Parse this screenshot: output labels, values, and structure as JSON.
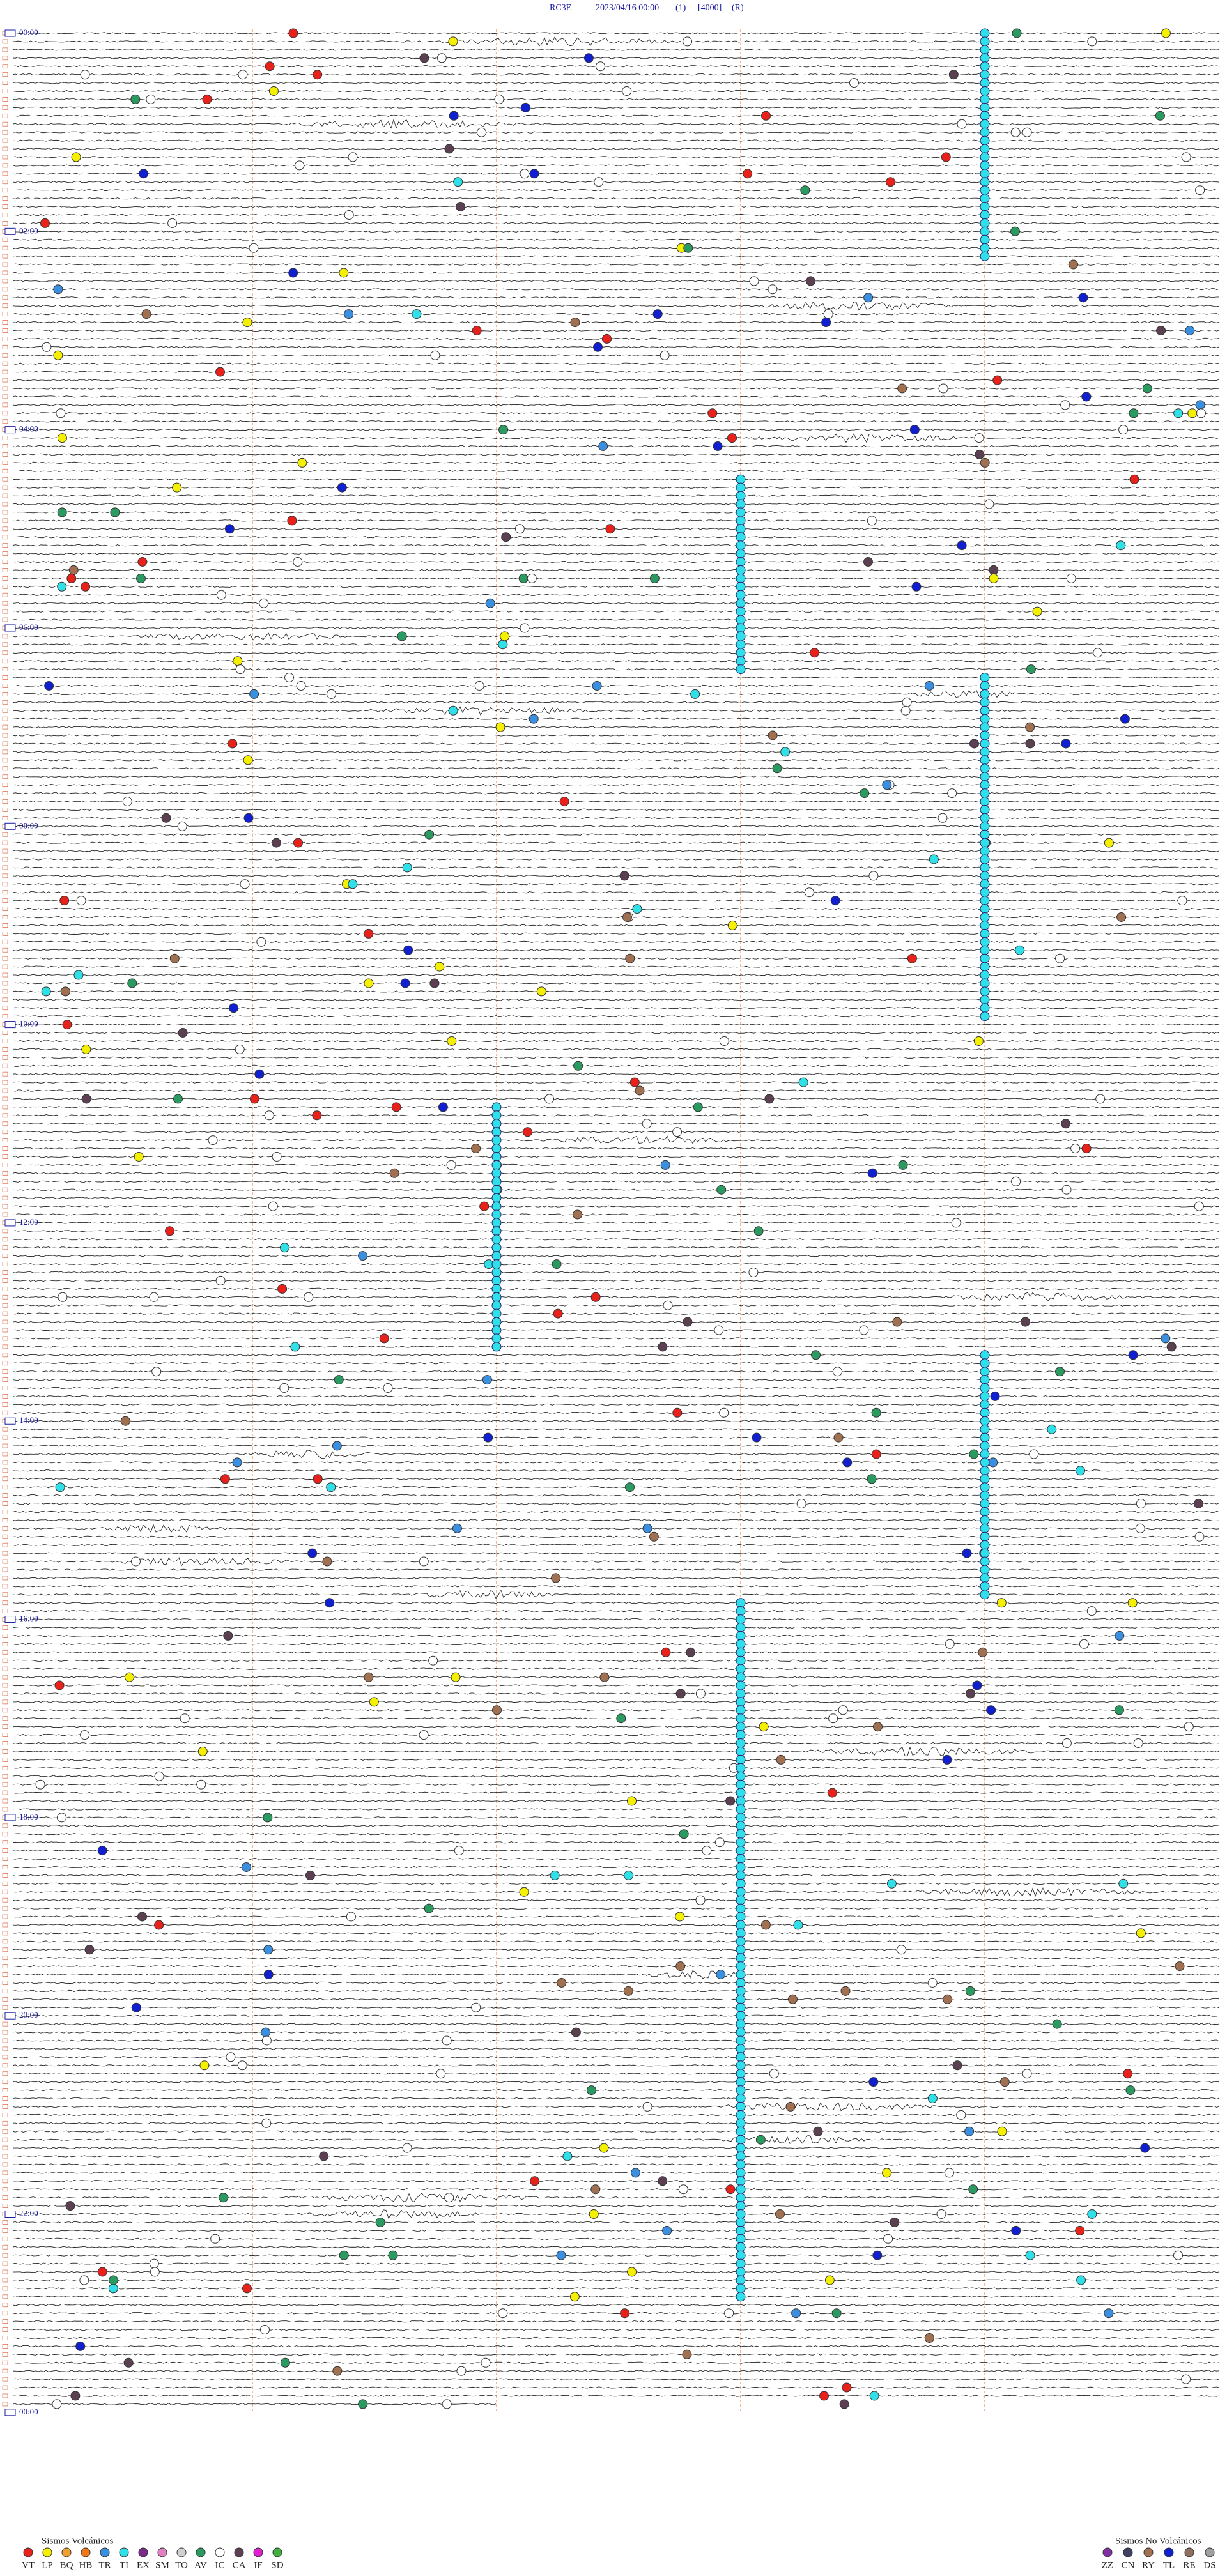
{
  "header": {
    "station": "RC3E",
    "datetime": "2023/04/16 00:00",
    "channel": "(1)",
    "scale": "[4000]",
    "mode": "(R)"
  },
  "hour_labels": [
    "00:00",
    "02:00",
    "04:00",
    "06:00",
    "08:00",
    "10:00",
    "12:00",
    "14:00",
    "16:00",
    "18:00",
    "20:00",
    "22:00",
    "00:00"
  ],
  "legend_volcanic": {
    "title": "Sismos Volcánicos",
    "items": [
      {
        "code": "VT",
        "color": "#e8211b"
      },
      {
        "code": "LP",
        "color": "#f5f000"
      },
      {
        "code": "BQ",
        "color": "#f0a030"
      },
      {
        "code": "HB",
        "color": "#f07818"
      },
      {
        "code": "TR",
        "color": "#3b8fe0"
      },
      {
        "code": "TI",
        "color": "#30e0e8"
      },
      {
        "code": "EX",
        "color": "#7a2a8a"
      },
      {
        "code": "SM",
        "color": "#e080c0"
      },
      {
        "code": "TO",
        "color": "#d0d0d0"
      },
      {
        "code": "AV",
        "color": "#2a9a60"
      },
      {
        "code": "IC",
        "color": "#ffffff"
      },
      {
        "code": "CA",
        "color": "#5a4050"
      },
      {
        "code": "IF",
        "color": "#e020d0"
      },
      {
        "code": "SD",
        "color": "#40b040"
      }
    ]
  },
  "legend_non_volcanic": {
    "title": "Sismos No Volcánicos",
    "items": [
      {
        "code": "ZZ",
        "color": "#8030a0"
      },
      {
        "code": "CN",
        "color": "#404060"
      },
      {
        "code": "RY",
        "color": "#a07050"
      },
      {
        "code": "TL",
        "color": "#1020d0"
      },
      {
        "code": "RE",
        "color": "#907060"
      },
      {
        "code": "DS",
        "color": "#a0a0a0"
      }
    ]
  }
}
